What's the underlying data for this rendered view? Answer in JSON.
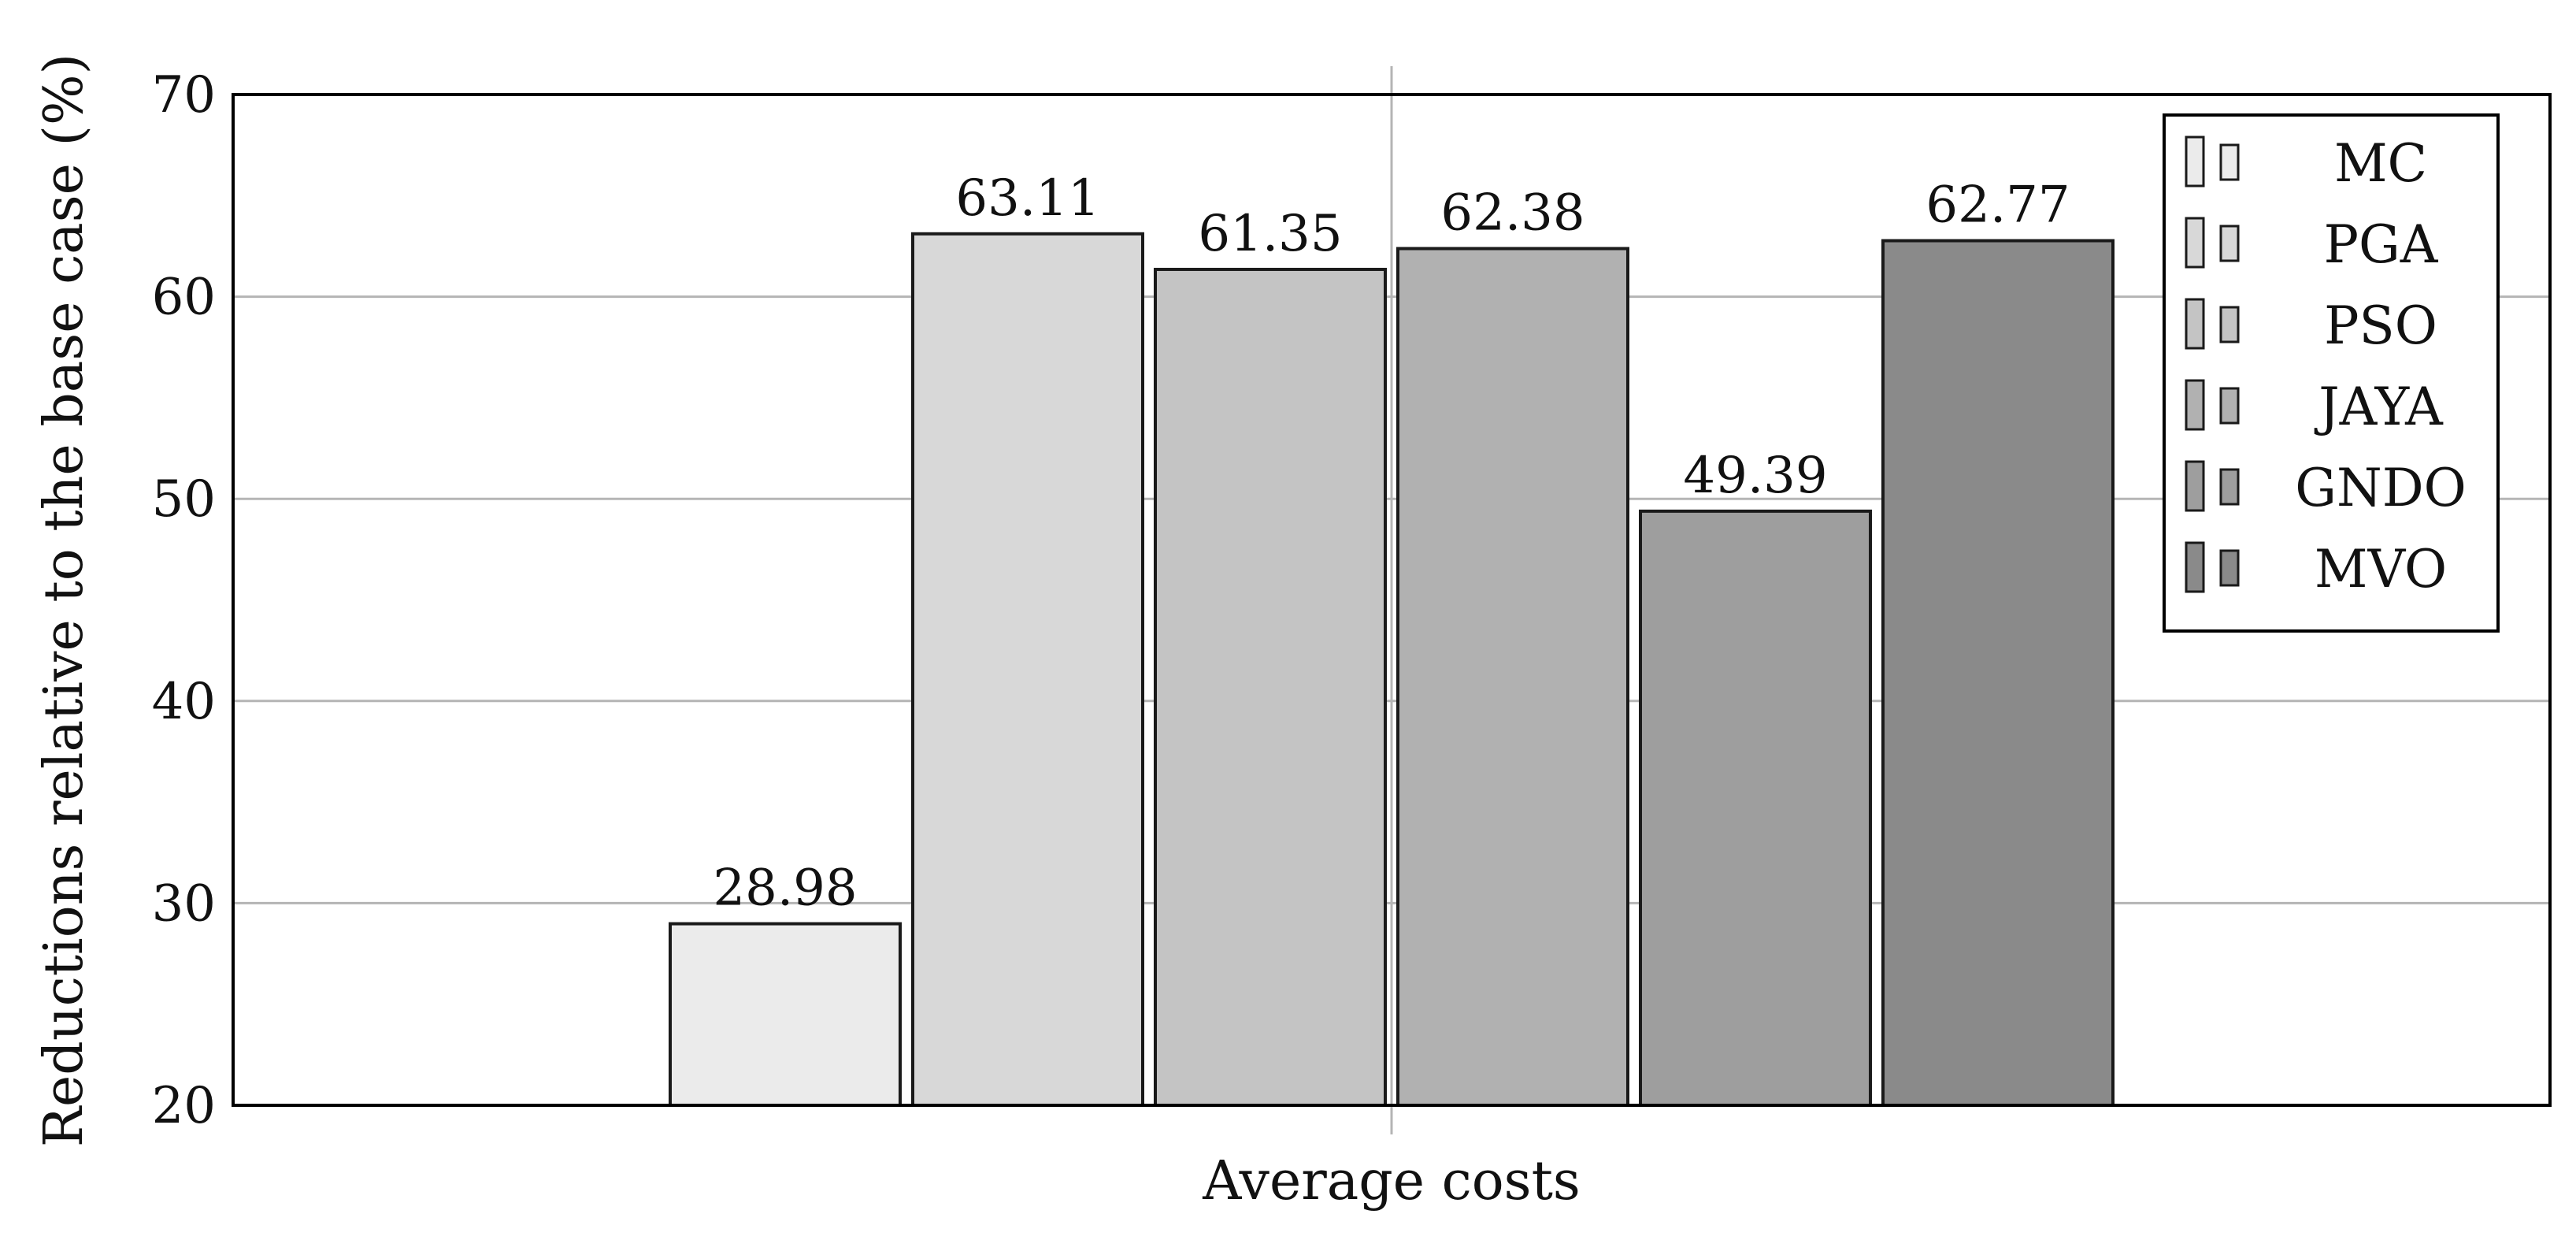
{
  "chart_data": {
    "type": "bar",
    "title": "",
    "xlabel": "Average costs",
    "ylabel": "Reductions relative to the base case (%)",
    "ylim": [
      20,
      70
    ],
    "yticks": [
      20,
      30,
      40,
      50,
      60,
      70
    ],
    "grid": true,
    "legend_position": "top-right",
    "categories": [
      "Average costs"
    ],
    "series": [
      {
        "name": "MC",
        "values": [
          28.98
        ],
        "color": "#ebebeb"
      },
      {
        "name": "PGA",
        "values": [
          63.11
        ],
        "color": "#d8d8d8"
      },
      {
        "name": "PSO",
        "values": [
          61.35
        ],
        "color": "#c4c4c4"
      },
      {
        "name": "JAYA",
        "values": [
          62.38
        ],
        "color": "#b1b1b1"
      },
      {
        "name": "GNDO",
        "values": [
          49.39
        ],
        "color": "#9e9e9e"
      },
      {
        "name": "MVO",
        "values": [
          62.77
        ],
        "color": "#8a8a8a"
      }
    ],
    "data_labels": [
      "28.98",
      "63.11",
      "61.35",
      "62.38",
      "49.39",
      "62.77"
    ]
  }
}
